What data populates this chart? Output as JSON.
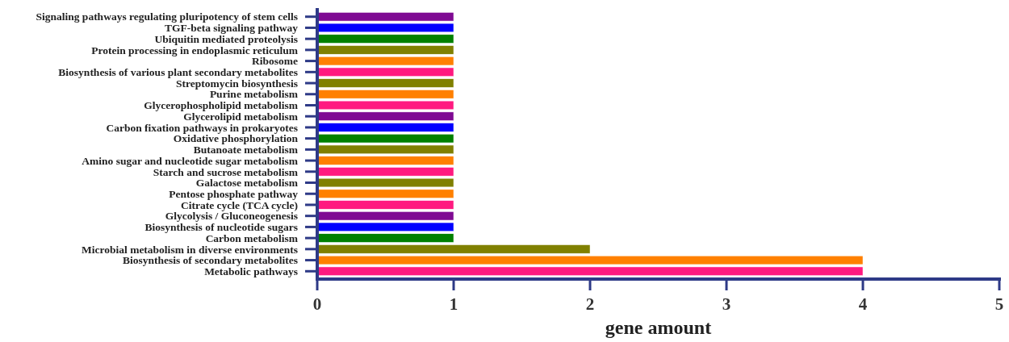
{
  "chart_data": {
    "type": "bar",
    "orientation": "horizontal",
    "xlabel": "gene amount",
    "categories": [
      "Signaling pathways regulating pluripotency of stem cells",
      "TGF-beta signaling pathway",
      "Ubiquitin mediated proteolysis",
      "Protein processing in endoplasmic reticulum",
      "Ribosome",
      "Biosynthesis of various plant secondary metabolites",
      "Streptomycin biosynthesis",
      "Purine metabolism",
      "Glycerophospholipid metabolism",
      "Glycerolipid metabolism",
      "Carbon fixation pathways in prokaryotes",
      "Oxidative phosphorylation",
      "Butanoate metabolism",
      "Amino sugar and nucleotide sugar metabolism",
      "Starch and sucrose metabolism",
      "Galactose metabolism",
      "Pentose phosphate pathway",
      "Citrate cycle (TCA cycle)",
      "Glycolysis / Gluconeogenesis",
      "Biosynthesis of nucleotide sugars",
      "Carbon metabolism",
      "Microbial metabolism in diverse environments",
      "Biosynthesis of secondary metabolites",
      "Metabolic pathways"
    ],
    "values": [
      1,
      1,
      1,
      1,
      1,
      1,
      1,
      1,
      1,
      1,
      1,
      1,
      1,
      1,
      1,
      1,
      1,
      1,
      1,
      1,
      1,
      2,
      4,
      4
    ],
    "colors": [
      "#7f0a93",
      "#0000ff",
      "#008000",
      "#808000",
      "#ff8000",
      "#ff1a80",
      "#808000",
      "#ff8000",
      "#ff1a80",
      "#7f0a93",
      "#0000ff",
      "#008000",
      "#808000",
      "#ff8000",
      "#ff1a80",
      "#808000",
      "#ff8000",
      "#ff1a80",
      "#7f0a93",
      "#0000ff",
      "#008000",
      "#808000",
      "#ff8000",
      "#ff1a80"
    ],
    "xlim": [
      0,
      5
    ],
    "xticks": [
      0,
      1,
      2,
      3,
      4,
      5
    ],
    "grid": false
  }
}
